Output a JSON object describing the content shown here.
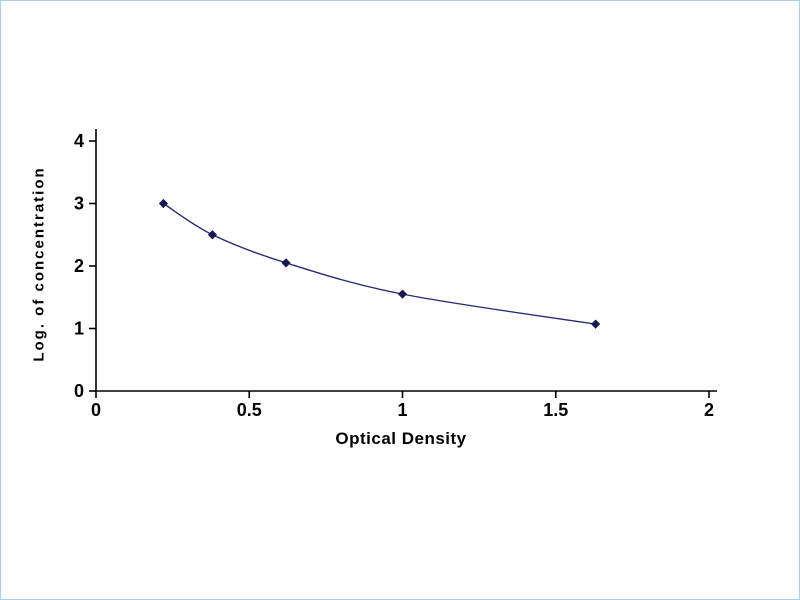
{
  "figure": {
    "background": "#ffffff",
    "border_color": "#aecbe8"
  },
  "chart_data": {
    "type": "line",
    "title": "",
    "xlabel": "Optical Density",
    "ylabel": "Log. of concentration",
    "x": [
      0.22,
      0.38,
      0.62,
      1.0,
      1.63
    ],
    "y": [
      3.0,
      2.5,
      2.05,
      1.55,
      1.07
    ],
    "xlim": [
      0,
      2
    ],
    "ylim": [
      0,
      4
    ],
    "xticks": [
      0,
      0.5,
      1,
      1.5,
      2
    ],
    "yticks": [
      0,
      1,
      2,
      3,
      4
    ],
    "marker": "diamond",
    "grid": false,
    "line_color": "#2b2b73",
    "marker_color": "#191950",
    "axis_color": "#000000"
  }
}
